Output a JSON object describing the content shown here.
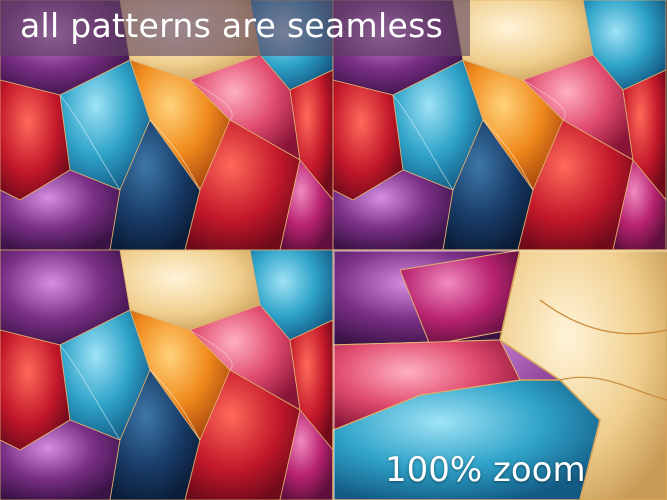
{
  "banner": {
    "text": "all patterns are seamless"
  },
  "zoom": {
    "label": "100% zoom"
  },
  "colors": {
    "red": "#c3182a",
    "crimson": "#9b1230",
    "orange": "#f08a1c",
    "gold": "#f2c14a",
    "cream": "#f3dfa8",
    "teal": "#2fa3c9",
    "navy": "#183a66",
    "purple": "#7a2f86",
    "magenta": "#c0277a",
    "pink": "#e85a7a"
  }
}
